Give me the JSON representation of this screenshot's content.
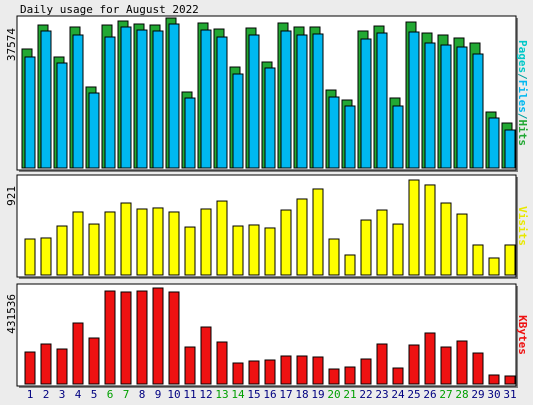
{
  "chart_data": [
    {
      "type": "bar",
      "title": "Daily usage for August 2022",
      "ylim": [
        0,
        37574
      ],
      "yticks": [
        37574
      ],
      "legend_prefix": {
        "name": "Pages",
        "color": "#00c8c8"
      },
      "legend_separator": "/",
      "series": [
        {
          "name": "Hits",
          "color": "#22a833",
          "offset": true,
          "values": [
            29600,
            35770,
            27540,
            35260,
            19820,
            35770,
            36800,
            36030,
            35770,
            37574,
            18530,
            36290,
            34740,
            24960,
            35000,
            26250,
            36290,
            35260,
            35260,
            19040,
            16470,
            34230,
            35510,
            16990,
            36540,
            33710,
            33200,
            32430,
            31140,
            13380,
            10550
          ]
        },
        {
          "name": "Files",
          "color": "#00b8f0",
          "values": [
            28570,
            35260,
            27020,
            34230,
            19300,
            33710,
            36290,
            35510,
            35260,
            37060,
            18010,
            35510,
            33710,
            24190,
            34230,
            25740,
            35260,
            34230,
            34490,
            18270,
            15960,
            33200,
            34740,
            15960,
            35000,
            32170,
            31650,
            31140,
            29340,
            12870,
            9780
          ]
        }
      ]
    },
    {
      "type": "bar",
      "ylim": [
        0,
        921
      ],
      "yticks": [
        921
      ],
      "series": [
        {
          "name": "Visits",
          "color": "#ffff00",
          "values": [
            349,
            359,
            475,
            611,
            494,
            611,
            698,
            640,
            650,
            611,
            465,
            640,
            717,
            475,
            485,
            456,
            630,
            737,
            834,
            349,
            194,
            533,
            630,
            494,
            921,
            873,
            698,
            591,
            291,
            165,
            291
          ]
        }
      ]
    },
    {
      "type": "bar",
      "ylim": [
        0,
        431536
      ],
      "yticks": [
        431536
      ],
      "categories": [
        "1",
        "2",
        "3",
        "4",
        "5",
        "6",
        "7",
        "8",
        "9",
        "10",
        "11",
        "12",
        "13",
        "14",
        "15",
        "16",
        "17",
        "18",
        "19",
        "20",
        "21",
        "22",
        "23",
        "24",
        "25",
        "26",
        "27",
        "28",
        "29",
        "30",
        "31"
      ],
      "category_colors": [
        "#000080",
        "#000080",
        "#000080",
        "#000080",
        "#000080",
        "#00a000",
        "#00a000",
        "#000080",
        "#000080",
        "#000080",
        "#000080",
        "#000080",
        "#00a000",
        "#00a000",
        "#000080",
        "#000080",
        "#000080",
        "#000080",
        "#000080",
        "#00a000",
        "#00a000",
        "#000080",
        "#000080",
        "#000080",
        "#000080",
        "#000080",
        "#00a000",
        "#00a000",
        "#000080",
        "#000080",
        "#000080"
      ],
      "series": [
        {
          "name": "KBytes",
          "color": "#ee1111",
          "values": [
            143800,
            179800,
            157300,
            274200,
            206800,
            418000,
            413600,
            418000,
            431536,
            413600,
            166300,
            256200,
            188800,
            94400,
            103400,
            107900,
            125900,
            125900,
            121400,
            67400,
            76400,
            112400,
            179800,
            71900,
            175300,
            229300,
            166300,
            193300,
            139300,
            40500,
            36000
          ]
        }
      ]
    }
  ]
}
